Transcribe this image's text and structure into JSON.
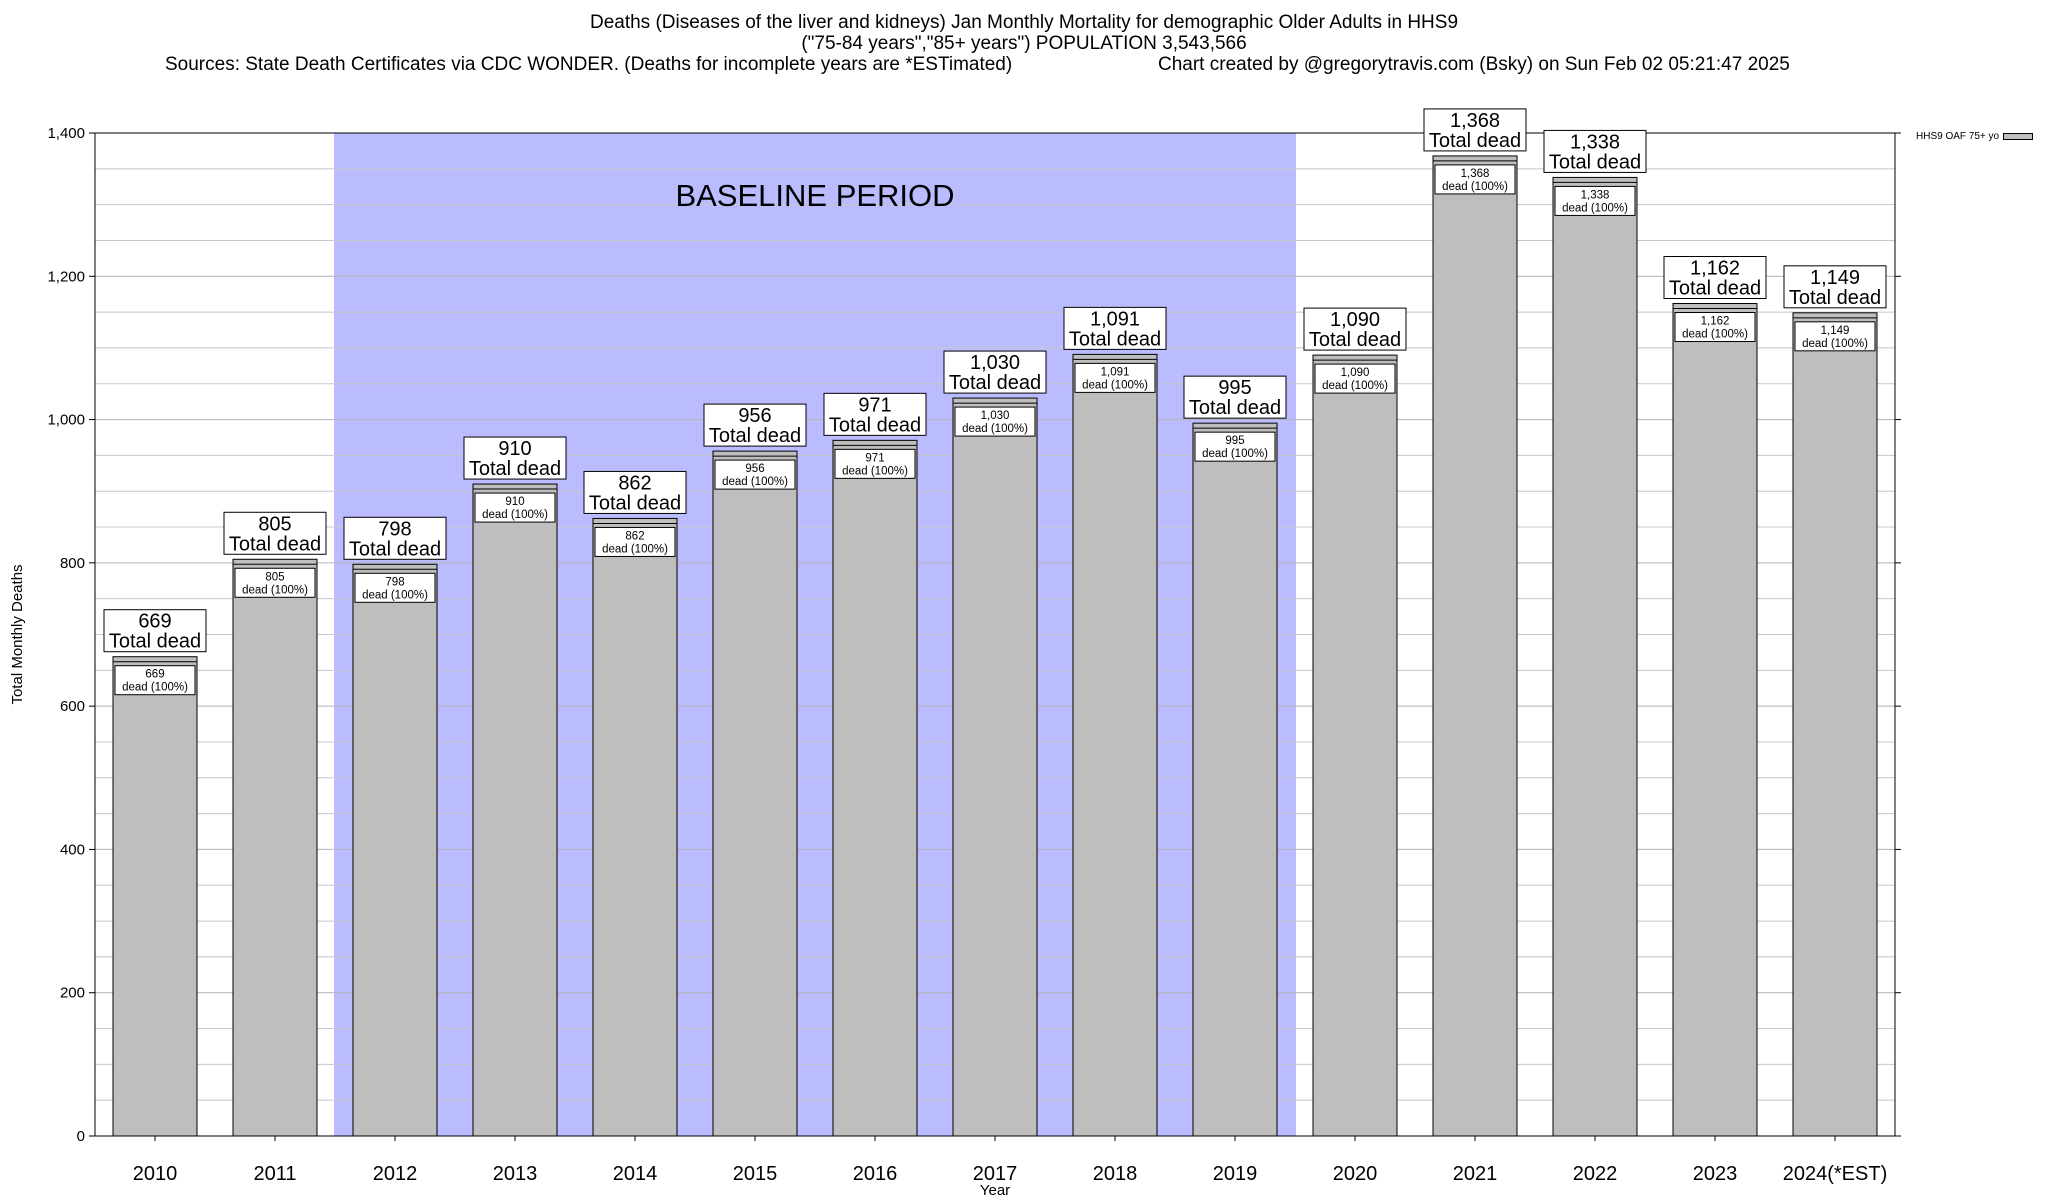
{
  "header": {
    "title_line1": "Deaths (Diseases of the liver and kidneys) Jan Monthly Mortality for demographic Older Adults in HHS9",
    "title_line2": "(\"75-84 years\",\"85+ years\") POPULATION 3,543,566",
    "sources": "Sources: State Death Certificates via CDC WONDER. (Deaths for incomplete years are *ESTimated)",
    "credit": "Chart created by @gregorytravis.com (Bsky) on Sun Feb 02 05:21:47 2025"
  },
  "legend": {
    "label": "HHS9 OAF 75+ yo"
  },
  "colors": {
    "bar": "#bebebe",
    "baseline": "#bbbbff",
    "grid": "#c8c8c8"
  },
  "chart_data": {
    "type": "bar",
    "xlabel": "Year",
    "ylabel": "Total Monthly Deaths",
    "ylim": [
      0,
      1400
    ],
    "y_ticks": [
      0,
      200,
      400,
      600,
      800,
      1000,
      1200,
      1400
    ],
    "y_tick_labels": [
      "0",
      "200",
      "400",
      "600",
      "800",
      "1,000",
      "1,200",
      "1,400"
    ],
    "grid": true,
    "legend_position": "top-right",
    "categories": [
      "2010",
      "2011",
      "2012",
      "2013",
      "2014",
      "2015",
      "2016",
      "2017",
      "2018",
      "2019",
      "2020",
      "2021",
      "2022",
      "2023",
      "2024(*EST)"
    ],
    "series": [
      {
        "name": "HHS9 OAF 75+ yo",
        "values": [
          669,
          805,
          798,
          910,
          862,
          956,
          971,
          1030,
          1091,
          995,
          1090,
          1368,
          1338,
          1162,
          1149
        ]
      }
    ],
    "value_labels": [
      "669",
      "805",
      "798",
      "910",
      "862",
      "956",
      "971",
      "1,030",
      "1,091",
      "995",
      "1,090",
      "1,368",
      "1,338",
      "1,162",
      "1,149"
    ],
    "total_label_suffix": "Total dead",
    "inner_label_suffix": "dead (100%)",
    "baseline": {
      "label": "BASELINE PERIOD",
      "from": "2012",
      "to": "2019"
    }
  }
}
